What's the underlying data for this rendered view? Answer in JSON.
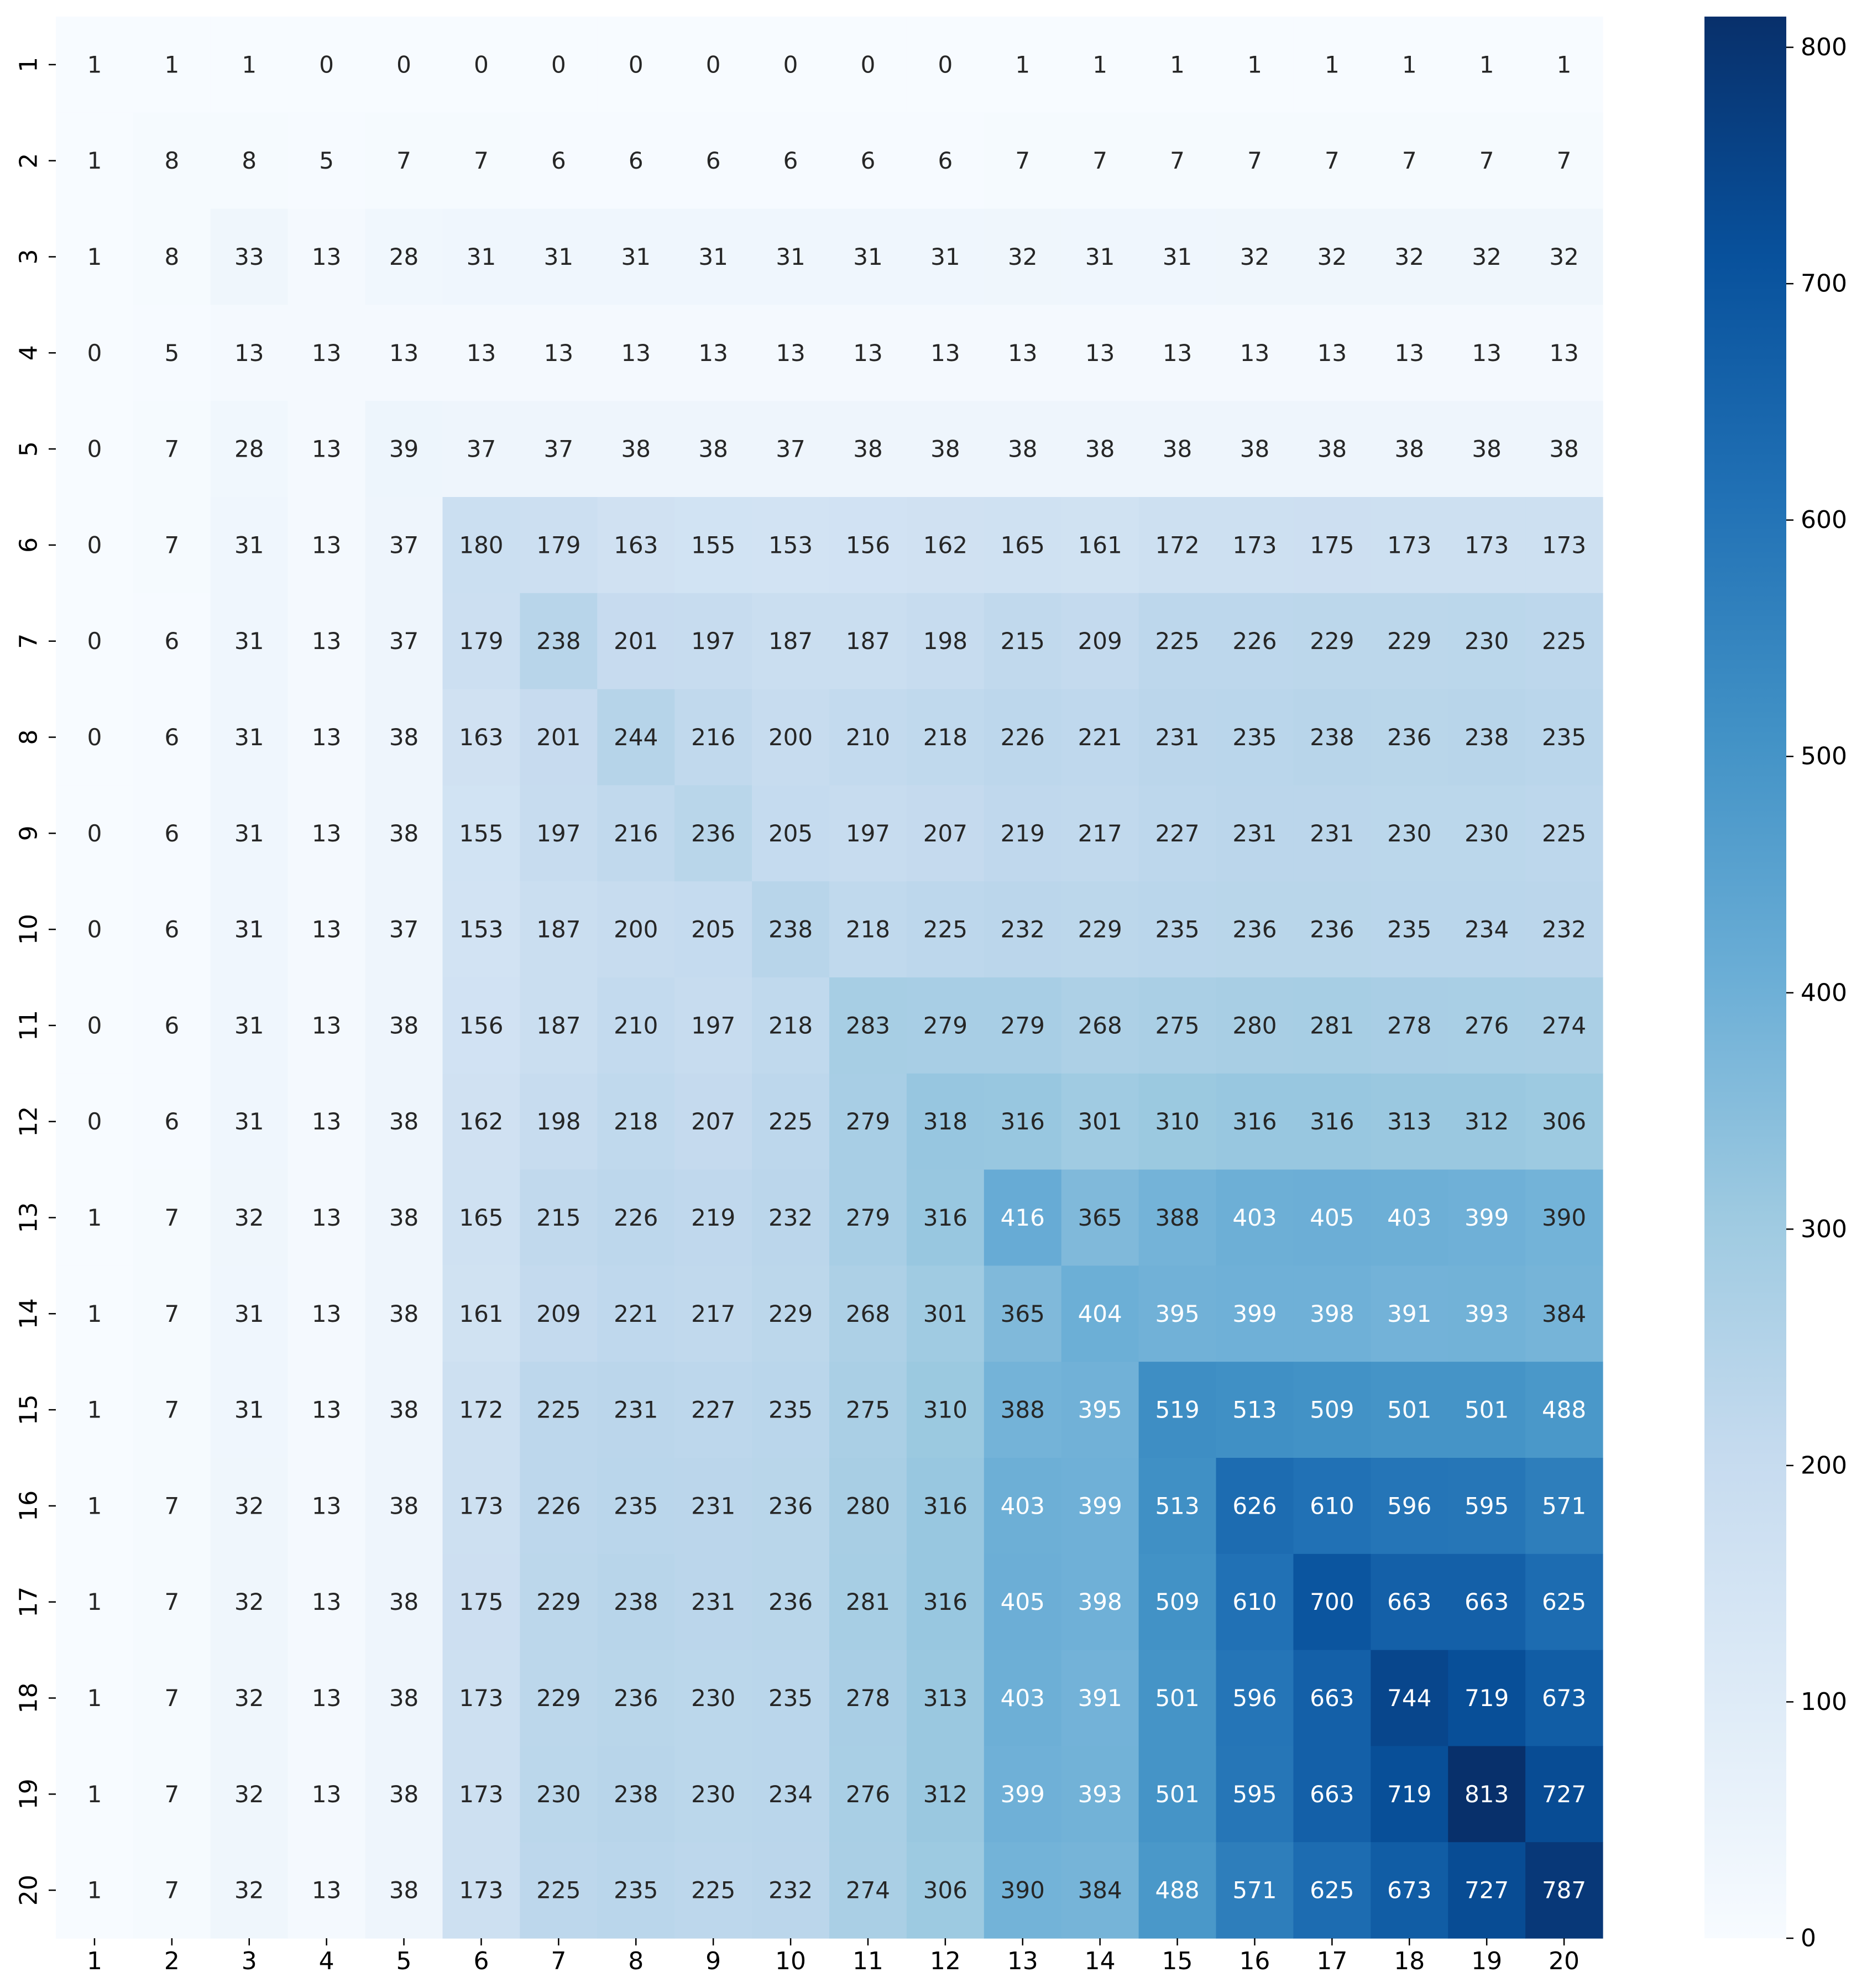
{
  "chart_data": {
    "type": "heatmap",
    "title": "",
    "xlabel": "",
    "ylabel": "",
    "x_categories": [
      "1",
      "2",
      "3",
      "4",
      "5",
      "6",
      "7",
      "8",
      "9",
      "10",
      "11",
      "12",
      "13",
      "14",
      "15",
      "16",
      "17",
      "18",
      "19",
      "20"
    ],
    "y_categories": [
      "1",
      "2",
      "3",
      "4",
      "5",
      "6",
      "7",
      "8",
      "9",
      "10",
      "11",
      "12",
      "13",
      "14",
      "15",
      "16",
      "17",
      "18",
      "19",
      "20"
    ],
    "values": [
      [
        1,
        1,
        1,
        0,
        0,
        0,
        0,
        0,
        0,
        0,
        0,
        0,
        1,
        1,
        1,
        1,
        1,
        1,
        1,
        1
      ],
      [
        1,
        8,
        8,
        5,
        7,
        7,
        6,
        6,
        6,
        6,
        6,
        6,
        7,
        7,
        7,
        7,
        7,
        7,
        7,
        7
      ],
      [
        1,
        8,
        33,
        13,
        28,
        31,
        31,
        31,
        31,
        31,
        31,
        31,
        32,
        31,
        31,
        32,
        32,
        32,
        32,
        32
      ],
      [
        0,
        5,
        13,
        13,
        13,
        13,
        13,
        13,
        13,
        13,
        13,
        13,
        13,
        13,
        13,
        13,
        13,
        13,
        13,
        13
      ],
      [
        0,
        7,
        28,
        13,
        39,
        37,
        37,
        38,
        38,
        37,
        38,
        38,
        38,
        38,
        38,
        38,
        38,
        38,
        38,
        38
      ],
      [
        0,
        7,
        31,
        13,
        37,
        180,
        179,
        163,
        155,
        153,
        156,
        162,
        165,
        161,
        172,
        173,
        175,
        173,
        173,
        173
      ],
      [
        0,
        6,
        31,
        13,
        37,
        179,
        238,
        201,
        197,
        187,
        187,
        198,
        215,
        209,
        225,
        226,
        229,
        229,
        230,
        225
      ],
      [
        0,
        6,
        31,
        13,
        38,
        163,
        201,
        244,
        216,
        200,
        210,
        218,
        226,
        221,
        231,
        235,
        238,
        236,
        238,
        235
      ],
      [
        0,
        6,
        31,
        13,
        38,
        155,
        197,
        216,
        236,
        205,
        197,
        207,
        219,
        217,
        227,
        231,
        231,
        230,
        230,
        225
      ],
      [
        0,
        6,
        31,
        13,
        37,
        153,
        187,
        200,
        205,
        238,
        218,
        225,
        232,
        229,
        235,
        236,
        236,
        235,
        234,
        232
      ],
      [
        0,
        6,
        31,
        13,
        38,
        156,
        187,
        210,
        197,
        218,
        283,
        279,
        279,
        268,
        275,
        280,
        281,
        278,
        276,
        274
      ],
      [
        0,
        6,
        31,
        13,
        38,
        162,
        198,
        218,
        207,
        225,
        279,
        318,
        316,
        301,
        310,
        316,
        316,
        313,
        312,
        306
      ],
      [
        1,
        7,
        32,
        13,
        38,
        165,
        215,
        226,
        219,
        232,
        279,
        316,
        416,
        365,
        388,
        403,
        405,
        403,
        399,
        390
      ],
      [
        1,
        7,
        31,
        13,
        38,
        161,
        209,
        221,
        217,
        229,
        268,
        301,
        365,
        404,
        395,
        399,
        398,
        391,
        393,
        384
      ],
      [
        1,
        7,
        31,
        13,
        38,
        172,
        225,
        231,
        227,
        235,
        275,
        310,
        388,
        395,
        519,
        513,
        509,
        501,
        501,
        488
      ],
      [
        1,
        7,
        32,
        13,
        38,
        173,
        226,
        235,
        231,
        236,
        280,
        316,
        403,
        399,
        513,
        626,
        610,
        596,
        595,
        571
      ],
      [
        1,
        7,
        32,
        13,
        38,
        175,
        229,
        238,
        231,
        236,
        281,
        316,
        405,
        398,
        509,
        610,
        700,
        663,
        663,
        625
      ],
      [
        1,
        7,
        32,
        13,
        38,
        173,
        229,
        236,
        230,
        235,
        278,
        313,
        403,
        391,
        501,
        596,
        663,
        744,
        719,
        673
      ],
      [
        1,
        7,
        32,
        13,
        38,
        173,
        230,
        238,
        230,
        234,
        276,
        312,
        399,
        393,
        501,
        595,
        663,
        719,
        813,
        727
      ],
      [
        1,
        7,
        32,
        13,
        38,
        173,
        225,
        235,
        225,
        232,
        274,
        306,
        390,
        384,
        488,
        571,
        625,
        673,
        727,
        787
      ]
    ],
    "colorbar": {
      "min": 0,
      "max": 813,
      "ticks": [
        0,
        100,
        200,
        300,
        400,
        500,
        600,
        700,
        800
      ],
      "tick_labels": [
        "0",
        "100",
        "200",
        "300",
        "400",
        "500",
        "600",
        "700",
        "800"
      ],
      "colormap": "Blues",
      "placement": "right"
    },
    "annotations": "cell values shown in each cell",
    "grid": false
  }
}
